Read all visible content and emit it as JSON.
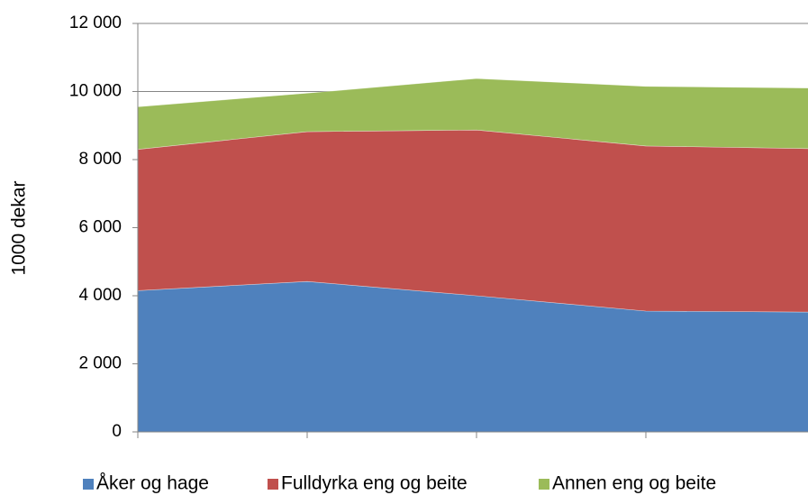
{
  "chart_data": {
    "type": "stacked_area",
    "y_label": "1000 dekar",
    "categories": [
      null,
      null,
      null,
      null,
      null
    ],
    "series": [
      {
        "name": "Åker og hage",
        "color": "#4f81bd",
        "values": [
          4150,
          4420,
          4000,
          3550,
          3520
        ]
      },
      {
        "name": "Fulldyrka eng og beite",
        "color": "#c0504d",
        "values": [
          4150,
          4400,
          4870,
          4850,
          4800
        ]
      },
      {
        "name": "Annen eng og beite",
        "color": "#9bbb59",
        "values": [
          1250,
          1130,
          1510,
          1750,
          1780
        ]
      }
    ],
    "ylim": [
      0,
      12000
    ],
    "yticks": [
      0,
      {
        "value": 2000,
        "label": "2 000"
      },
      {
        "value": 4000,
        "label": "4 000"
      },
      {
        "value": 6000,
        "label": "6 000"
      },
      {
        "value": 8000,
        "label": "8 000"
      },
      {
        "value": 10000,
        "label": "10 000"
      },
      {
        "value": 12000,
        "label": "12 000"
      }
    ],
    "grid": true,
    "legend": "bottom"
  }
}
